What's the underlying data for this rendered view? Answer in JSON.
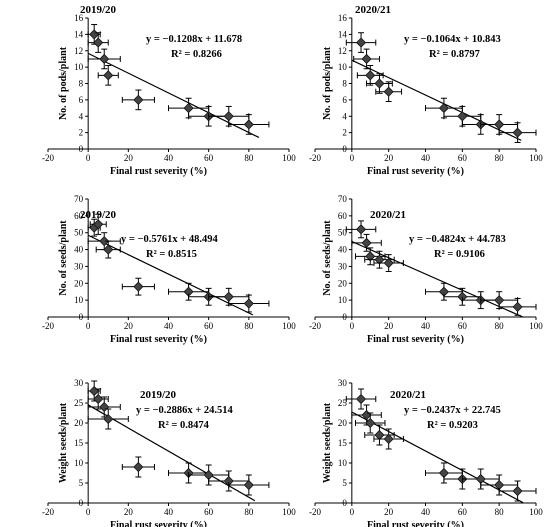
{
  "chart_data": [
    {
      "type": "scatter",
      "title": "2019/20",
      "xlabel": "Final rust severity (%)",
      "ylabel": "No. of pods/plant",
      "xlim": [
        -20,
        100
      ],
      "ylim": [
        0,
        16
      ],
      "xticks": [
        -20,
        0,
        20,
        40,
        60,
        80,
        100
      ],
      "yticks": [
        0,
        2,
        4,
        6,
        8,
        10,
        12,
        14,
        16
      ],
      "equation": "y = −0.1208x + 11.678",
      "r2": "R² = 0.8266",
      "trendline": {
        "slope": -0.1208,
        "intercept": 11.678,
        "x_range": [
          0,
          85
        ]
      },
      "points": [
        {
          "x": 3,
          "y": 14,
          "xerr": 3,
          "yerr": 1.2
        },
        {
          "x": 5,
          "y": 13,
          "xerr": 5,
          "yerr": 1.2
        },
        {
          "x": 8,
          "y": 11,
          "xerr": 8,
          "yerr": 1.2
        },
        {
          "x": 10,
          "y": 9,
          "xerr": 5,
          "yerr": 1.2
        },
        {
          "x": 25,
          "y": 6,
          "xerr": 8,
          "yerr": 1.2
        },
        {
          "x": 50,
          "y": 5,
          "xerr": 10,
          "yerr": 1.2
        },
        {
          "x": 60,
          "y": 4,
          "xerr": 10,
          "yerr": 1.2
        },
        {
          "x": 70,
          "y": 4,
          "xerr": 10,
          "yerr": 1.2
        },
        {
          "x": 80,
          "y": 3,
          "xerr": 10,
          "yerr": 1.2
        }
      ]
    },
    {
      "type": "scatter",
      "title": "2020/21",
      "xlabel": "Final rust severity (%)",
      "ylabel": "No. of pods/plant",
      "xlim": [
        -20,
        100
      ],
      "ylim": [
        0,
        16
      ],
      "xticks": [
        -20,
        0,
        20,
        40,
        60,
        80,
        100
      ],
      "yticks": [
        0,
        2,
        4,
        6,
        8,
        10,
        12,
        14,
        16
      ],
      "equation": "y = −0.1064x + 10.843",
      "r2": "R² = 0.8797",
      "trendline": {
        "slope": -0.1064,
        "intercept": 10.843,
        "x_range": [
          0,
          92
        ]
      },
      "points": [
        {
          "x": 5,
          "y": 13,
          "xerr": 8,
          "yerr": 1.2
        },
        {
          "x": 8,
          "y": 11,
          "xerr": 7,
          "yerr": 1.2
        },
        {
          "x": 10,
          "y": 9,
          "xerr": 7,
          "yerr": 1.2
        },
        {
          "x": 15,
          "y": 8,
          "xerr": 7,
          "yerr": 1.2
        },
        {
          "x": 20,
          "y": 7,
          "xerr": 7,
          "yerr": 1.2
        },
        {
          "x": 50,
          "y": 5,
          "xerr": 10,
          "yerr": 1.2
        },
        {
          "x": 60,
          "y": 4,
          "xerr": 10,
          "yerr": 1.2
        },
        {
          "x": 70,
          "y": 3,
          "xerr": 10,
          "yerr": 1.2
        },
        {
          "x": 80,
          "y": 3,
          "xerr": 10,
          "yerr": 1.2
        },
        {
          "x": 90,
          "y": 2,
          "xerr": 10,
          "yerr": 1.2
        }
      ]
    },
    {
      "type": "scatter",
      "title": "2019/20",
      "xlabel": "Final rust severity (%)",
      "ylabel": "No. of seeds/plant",
      "xlim": [
        -20,
        100
      ],
      "ylim": [
        0,
        70
      ],
      "xticks": [
        -20,
        0,
        20,
        40,
        60,
        80,
        100
      ],
      "yticks": [
        0,
        10,
        20,
        30,
        40,
        50,
        60,
        70
      ],
      "equation": "y = −0.5761x + 48.494",
      "r2": "R² = 0.8515",
      "trendline": {
        "slope": -0.5761,
        "intercept": 48.494,
        "x_range": [
          0,
          82
        ]
      },
      "points": [
        {
          "x": 3,
          "y": 53,
          "xerr": 3,
          "yerr": 5
        },
        {
          "x": 5,
          "y": 55,
          "xerr": 4,
          "yerr": 6
        },
        {
          "x": 8,
          "y": 45,
          "xerr": 8,
          "yerr": 5
        },
        {
          "x": 10,
          "y": 40,
          "xerr": 6,
          "yerr": 5
        },
        {
          "x": 25,
          "y": 18,
          "xerr": 8,
          "yerr": 5
        },
        {
          "x": 50,
          "y": 15,
          "xerr": 10,
          "yerr": 5
        },
        {
          "x": 60,
          "y": 12,
          "xerr": 10,
          "yerr": 5
        },
        {
          "x": 70,
          "y": 12,
          "xerr": 10,
          "yerr": 5
        },
        {
          "x": 80,
          "y": 8,
          "xerr": 10,
          "yerr": 5
        }
      ]
    },
    {
      "type": "scatter",
      "title": "2020/21",
      "xlabel": "Final rust severity (%)",
      "ylabel": "No. of seeds/plant",
      "xlim": [
        -20,
        100
      ],
      "ylim": [
        0,
        70
      ],
      "xticks": [
        -20,
        0,
        20,
        40,
        60,
        80,
        100
      ],
      "yticks": [
        0,
        10,
        20,
        30,
        40,
        50,
        60,
        70
      ],
      "equation": "y = −0.4824x + 44.783",
      "r2": "R² = 0.9106",
      "trendline": {
        "slope": -0.4824,
        "intercept": 44.783,
        "x_range": [
          0,
          93
        ]
      },
      "points": [
        {
          "x": 5,
          "y": 52,
          "xerr": 8,
          "yerr": 5
        },
        {
          "x": 8,
          "y": 44,
          "xerr": 8,
          "yerr": 5
        },
        {
          "x": 10,
          "y": 36,
          "xerr": 8,
          "yerr": 5
        },
        {
          "x": 15,
          "y": 34,
          "xerr": 8,
          "yerr": 5
        },
        {
          "x": 20,
          "y": 32,
          "xerr": 8,
          "yerr": 5
        },
        {
          "x": 50,
          "y": 15,
          "xerr": 10,
          "yerr": 5
        },
        {
          "x": 60,
          "y": 12,
          "xerr": 10,
          "yerr": 5
        },
        {
          "x": 70,
          "y": 10,
          "xerr": 10,
          "yerr": 5
        },
        {
          "x": 80,
          "y": 10,
          "xerr": 10,
          "yerr": 5
        },
        {
          "x": 90,
          "y": 6,
          "xerr": 10,
          "yerr": 5
        }
      ]
    },
    {
      "type": "scatter",
      "title": "2019/20",
      "xlabel": "Final rust severity (%)",
      "ylabel": "Weight seeds/plant",
      "xlim": [
        -20,
        100
      ],
      "ylim": [
        0,
        30
      ],
      "xticks": [
        -20,
        0,
        20,
        40,
        60,
        80,
        100
      ],
      "yticks": [
        0,
        5,
        10,
        15,
        20,
        25,
        30
      ],
      "equation": "y = −0.2886x + 24.514",
      "r2": "R² = 0.8474",
      "trendline": {
        "slope": -0.2886,
        "intercept": 24.514,
        "x_range": [
          0,
          83
        ]
      },
      "points": [
        {
          "x": 3,
          "y": 28,
          "xerr": 3,
          "yerr": 2.5
        },
        {
          "x": 5,
          "y": 26,
          "xerr": 5,
          "yerr": 2.5
        },
        {
          "x": 8,
          "y": 24,
          "xerr": 8,
          "yerr": 2.5
        },
        {
          "x": 10,
          "y": 21,
          "xerr": 10,
          "yerr": 2.5
        },
        {
          "x": 25,
          "y": 9,
          "xerr": 8,
          "yerr": 2.5
        },
        {
          "x": 50,
          "y": 7.5,
          "xerr": 10,
          "yerr": 2.5
        },
        {
          "x": 60,
          "y": 7,
          "xerr": 10,
          "yerr": 2.5
        },
        {
          "x": 70,
          "y": 5.5,
          "xerr": 10,
          "yerr": 2.5
        },
        {
          "x": 80,
          "y": 4.5,
          "xerr": 10,
          "yerr": 2.5
        }
      ]
    },
    {
      "type": "scatter",
      "title": "2020/21",
      "xlabel": "Final rust severity (%)",
      "ylabel": "Weight seeds/plant",
      "xlim": [
        -20,
        100
      ],
      "ylim": [
        0,
        30
      ],
      "xticks": [
        -20,
        0,
        20,
        40,
        60,
        80,
        100
      ],
      "yticks": [
        0,
        5,
        10,
        15,
        20,
        25,
        30
      ],
      "equation": "y = −0.2437x + 22.745",
      "r2": "R² = 0.9203",
      "trendline": {
        "slope": -0.2437,
        "intercept": 22.745,
        "x_range": [
          0,
          93
        ]
      },
      "points": [
        {
          "x": 5,
          "y": 26,
          "xerr": 8,
          "yerr": 2.5
        },
        {
          "x": 8,
          "y": 22,
          "xerr": 8,
          "yerr": 2.5
        },
        {
          "x": 10,
          "y": 20,
          "xerr": 8,
          "yerr": 2.5
        },
        {
          "x": 15,
          "y": 17,
          "xerr": 8,
          "yerr": 2.5
        },
        {
          "x": 20,
          "y": 16,
          "xerr": 8,
          "yerr": 2.5
        },
        {
          "x": 50,
          "y": 7.5,
          "xerr": 10,
          "yerr": 2.5
        },
        {
          "x": 60,
          "y": 6,
          "xerr": 10,
          "yerr": 2.5
        },
        {
          "x": 70,
          "y": 6,
          "xerr": 10,
          "yerr": 2.5
        },
        {
          "x": 80,
          "y": 4.5,
          "xerr": 10,
          "yerr": 2.5
        },
        {
          "x": 90,
          "y": 3,
          "xerr": 10,
          "yerr": 2.5
        }
      ]
    }
  ]
}
